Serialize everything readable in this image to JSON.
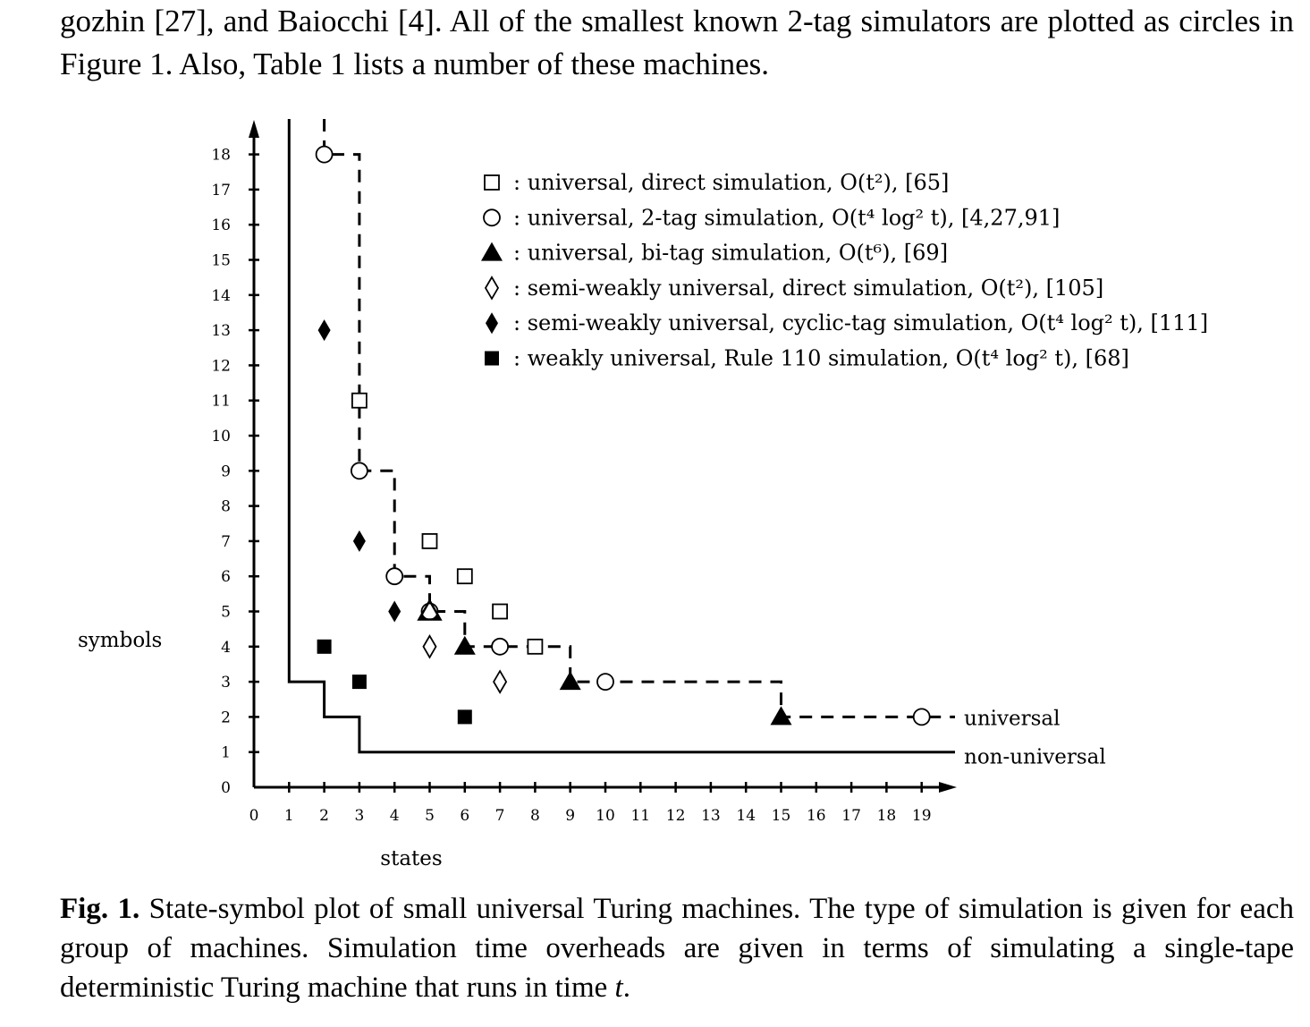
{
  "intro_text": "gozhin [27], and Baiocchi [4]. All of the smallest known 2-tag simulators are plotted as circles in Figure 1. Also, Table 1 lists a number of these machines.",
  "caption": {
    "label": "Fig. 1.",
    "text": "State-symbol plot of small universal Turing machines. The type of simulation is given for each group of machines. Simulation time overheads are given in terms of simulating a single-tape deterministic Turing machine that runs in time ",
    "var": "t",
    "end": "."
  },
  "chart_data": {
    "type": "scatter",
    "xlabel": "states",
    "ylabel": "symbols",
    "xlim": [
      0,
      19
    ],
    "ylim": [
      0,
      18
    ],
    "x_ticks": [
      0,
      1,
      2,
      3,
      4,
      5,
      6,
      7,
      8,
      9,
      10,
      11,
      12,
      13,
      14,
      15,
      16,
      17,
      18,
      19
    ],
    "y_ticks": [
      0,
      1,
      2,
      3,
      4,
      5,
      6,
      7,
      8,
      9,
      10,
      11,
      12,
      13,
      14,
      15,
      16,
      17,
      18
    ],
    "legend_position": "top-right",
    "series": [
      {
        "marker": "open-square",
        "label": ": universal, direct simulation, O(t²), [65]",
        "points": [
          [
            3,
            11
          ],
          [
            5,
            7
          ],
          [
            6,
            6
          ],
          [
            7,
            5
          ],
          [
            8,
            4
          ]
        ]
      },
      {
        "marker": "open-circle",
        "label": ": universal, 2-tag simulation, O(t⁴ log² t), [4,27,91]",
        "points": [
          [
            2,
            18
          ],
          [
            3,
            9
          ],
          [
            4,
            6
          ],
          [
            5,
            5
          ],
          [
            7,
            4
          ],
          [
            10,
            3
          ],
          [
            19,
            2
          ]
        ]
      },
      {
        "marker": "filled-triangle",
        "label": ": universal, bi-tag simulation, O(t⁶), [69]",
        "points": [
          [
            5,
            5
          ],
          [
            6,
            4
          ],
          [
            9,
            3
          ],
          [
            15,
            2
          ]
        ]
      },
      {
        "marker": "open-diamond",
        "label": ": semi-weakly universal, direct simulation, O(t²), [105]",
        "points": [
          [
            5,
            4
          ],
          [
            7,
            3
          ]
        ]
      },
      {
        "marker": "filled-diamond",
        "label": ": semi-weakly universal, cyclic-tag simulation, O(t⁴ log² t), [111]",
        "points": [
          [
            2,
            13
          ],
          [
            3,
            7
          ],
          [
            4,
            5
          ]
        ]
      },
      {
        "marker": "filled-square",
        "label": ": weakly universal, Rule 110 simulation, O(t⁴ log² t), [68]",
        "points": [
          [
            2,
            4
          ],
          [
            3,
            3
          ],
          [
            6,
            2
          ]
        ]
      }
    ],
    "boundaries": [
      {
        "label": "universal",
        "style": "dashed",
        "points": [
          [
            2,
            19
          ],
          [
            2,
            18
          ],
          [
            3,
            18
          ],
          [
            3,
            9
          ],
          [
            4,
            9
          ],
          [
            4,
            6
          ],
          [
            5,
            6
          ],
          [
            5,
            5
          ],
          [
            6,
            5
          ],
          [
            6,
            4
          ],
          [
            9,
            4
          ],
          [
            9,
            3
          ],
          [
            15,
            3
          ],
          [
            15,
            2
          ],
          [
            20,
            2
          ]
        ]
      },
      {
        "label": "non-universal",
        "style": "solid",
        "points": [
          [
            1,
            19
          ],
          [
            1,
            3
          ],
          [
            2,
            3
          ],
          [
            2,
            2
          ],
          [
            3,
            2
          ],
          [
            3,
            1
          ],
          [
            20,
            1
          ]
        ]
      }
    ]
  }
}
